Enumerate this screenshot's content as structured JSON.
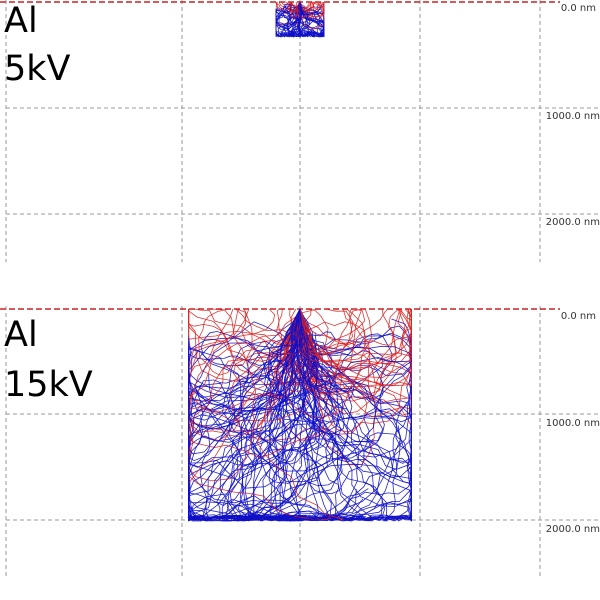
{
  "panels": [
    {
      "material": "Al",
      "voltage": "5kV",
      "depth_labels": [
        "0.0 nm",
        "1000.0 nm",
        "2000.0 nm"
      ],
      "trajectories": {
        "count": 70,
        "spread_nm": 300,
        "depth_nm": 330
      }
    },
    {
      "material": "Al",
      "voltage": "15kV",
      "depth_labels": [
        "0.0 nm",
        "1000.0 nm",
        "2000.0 nm"
      ],
      "trajectories": {
        "count": 150,
        "spread_nm": 1400,
        "depth_nm": 2000
      }
    }
  ],
  "colors": {
    "absorbed_trajectory": "#1010c8",
    "backscattered_trajectory": "#dd2222",
    "surface_line": "#cc2222",
    "grid": "#9a9a9a"
  }
}
